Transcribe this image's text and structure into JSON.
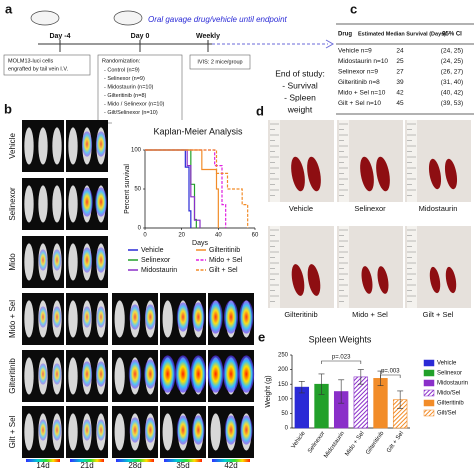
{
  "panel_a": {
    "label": "a",
    "days": [
      "Day -4",
      "Day 0",
      "Weekly"
    ],
    "gavage": "Oral gavage drug/vehicle until endpoint",
    "engraft": [
      "MOLM13-luci cells",
      "engrafted by tail vein I.V."
    ],
    "randomization": {
      "title": "Randomization:",
      "groups": [
        "- Control (n=9)",
        "- Selinexor (n=9)",
        "- Midostaurin (n=10)",
        "- Gilteritinib (n=8)",
        "- Mido / Selinexor (n=10)",
        "- Gilt/Selinexor (n=10)"
      ]
    },
    "ivis": "IVIS: 2 mice/group",
    "end": [
      "End of study:",
      "- Survival",
      "- Spleen",
      "weight"
    ]
  },
  "panel_c": {
    "label": "c",
    "table": {
      "headers": [
        "Drug",
        "Estimated Median Survival (Days)",
        "95% CI"
      ],
      "rows": [
        [
          "Vehicle n=9",
          "24",
          "(24, 25)"
        ],
        [
          "Midostaurin n=10",
          "25",
          "(24, 25)"
        ],
        [
          "Selinexor n=9",
          "27",
          "(26, 27)"
        ],
        [
          "Gilteritinib n=8",
          "39",
          "(31, 40)"
        ],
        [
          "Mido + Sel n=10",
          "42",
          "(40, 42)"
        ],
        [
          "Gilt + Sel n=10",
          "45",
          "(39, 53)"
        ]
      ]
    }
  },
  "panel_b": {
    "label": "b",
    "rows": [
      "Vehicle",
      "Selinexor",
      "Mido",
      "Mido + Sel",
      "Gilteritinib",
      "Gilt + Sel"
    ],
    "columns": [
      "14d",
      "21d",
      "28d",
      "35d",
      "42d"
    ]
  },
  "panel_d": {
    "label": "d",
    "photos": [
      "Vehicle",
      "Selinexor",
      "Midostaurin",
      "Gilteritinib",
      "Mido + Sel",
      "Gilt + Sel"
    ]
  },
  "panel_e": {
    "label": "e"
  },
  "chart_data": [
    {
      "type": "line",
      "title": "Kaplan-Meier Analysis",
      "x_label": "Days",
      "y_label": "Percent survival",
      "xlim": [
        0,
        60
      ],
      "xticks": [
        0,
        20,
        40,
        60
      ],
      "ylim": [
        0,
        100
      ],
      "yticks": [
        0,
        50,
        100
      ],
      "series": [
        {
          "name": "Vehicle",
          "color": "#2a2ad6",
          "dashed": false,
          "x": [
            0,
            22,
            22,
            24,
            24,
            25,
            25
          ],
          "values": [
            100,
            100,
            78,
            78,
            22,
            22,
            0
          ]
        },
        {
          "name": "Selinexor",
          "color": "#22a02a",
          "dashed": false,
          "x": [
            0,
            25,
            25,
            27,
            27,
            28,
            28
          ],
          "values": [
            100,
            100,
            56,
            56,
            11,
            11,
            0
          ]
        },
        {
          "name": "Midostaurin",
          "color": "#8a2fc9",
          "dashed": false,
          "x": [
            0,
            23,
            23,
            25,
            25,
            27,
            27,
            30,
            30
          ],
          "values": [
            100,
            100,
            80,
            80,
            40,
            40,
            10,
            10,
            0
          ]
        },
        {
          "name": "Gilteritinib",
          "color": "#f28c28",
          "dashed": false,
          "x": [
            0,
            31,
            31,
            39,
            39,
            40,
            40
          ],
          "values": [
            100,
            100,
            75,
            75,
            50,
            50,
            0
          ]
        },
        {
          "name": "Mido + Sel",
          "color": "#e020e0",
          "dashed": true,
          "x": [
            0,
            38,
            38,
            42,
            42,
            44,
            44
          ],
          "values": [
            100,
            100,
            80,
            80,
            30,
            30,
            0
          ]
        },
        {
          "name": "Gilt + Sel",
          "color": "#f28c28",
          "dashed": true,
          "x": [
            0,
            39,
            39,
            45,
            45,
            53,
            53,
            56,
            56
          ],
          "values": [
            100,
            100,
            70,
            70,
            50,
            50,
            30,
            30,
            0
          ]
        }
      ]
    },
    {
      "type": "bar",
      "title": "Spleen Weights",
      "y_label": "Weight (g)",
      "categories": [
        "Vehicle",
        "Selinexor",
        "Midostaurin",
        "Mido + Sel",
        "Gilteritinib",
        "Gilt + Sel"
      ],
      "values": [
        140,
        150,
        125,
        175,
        170,
        97
      ],
      "errors": [
        20,
        35,
        40,
        25,
        25,
        30
      ],
      "colors": [
        "#2a2ad6",
        "#22a02a",
        "#8a2fc9",
        "#8a2fc9",
        "#f28c28",
        "#f28c28"
      ],
      "hatched": [
        false,
        false,
        false,
        true,
        false,
        true
      ],
      "legend": [
        "Vehicle",
        "Selinexor",
        "Midostaurin",
        "Mido/Sel",
        "Gilteritinib",
        "Gilt/Sel"
      ],
      "ylim": [
        0,
        250
      ],
      "yticks": [
        0,
        50,
        100,
        150,
        200,
        250
      ],
      "annotations": [
        "p=.023",
        "p=.003"
      ]
    }
  ]
}
